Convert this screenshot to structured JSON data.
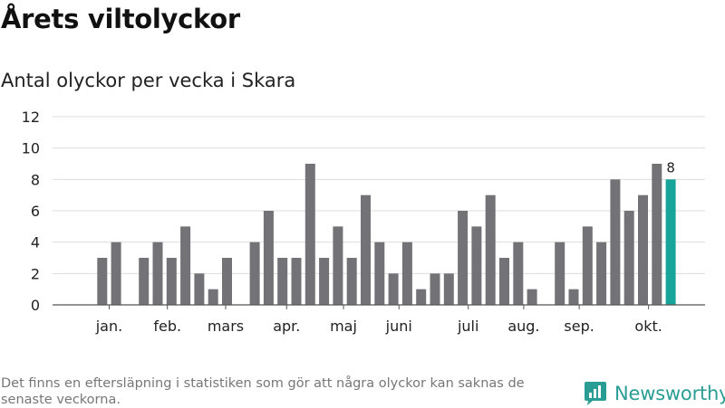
{
  "header": {
    "title": "Årets viltolyckor",
    "subtitle": "Antal olyckor per vecka i Skara"
  },
  "footer": {
    "note": "Det finns en eftersläpning i statistiken som gör att några olyckor kan saknas de senaste veckorna.",
    "brand": "Newsworthy"
  },
  "colors": {
    "bar": "#737277",
    "highlight": "#17a59b",
    "grid": "#dddddd",
    "axis": "#555555",
    "brand": "#2a9d95"
  },
  "chart_data": {
    "type": "bar",
    "title": "",
    "xlabel": "",
    "ylabel": "",
    "ylim": [
      0,
      12
    ],
    "yticks": [
      0,
      2,
      4,
      6,
      8,
      10,
      12
    ],
    "grid": true,
    "legend": "none",
    "week_start": 1,
    "values": [
      null,
      3,
      4,
      null,
      3,
      4,
      3,
      5,
      2,
      1,
      3,
      null,
      4,
      6,
      3,
      3,
      9,
      3,
      5,
      3,
      7,
      4,
      2,
      4,
      1,
      2,
      2,
      6,
      5,
      7,
      3,
      4,
      1,
      null,
      4,
      1,
      5,
      4,
      8,
      6,
      7,
      9,
      8
    ],
    "highlight_index": 42,
    "data_label": {
      "index": 42,
      "text": "8"
    },
    "month_labels": [
      {
        "label": "jan.",
        "week": 2.5
      },
      {
        "label": "feb.",
        "week": 6.7
      },
      {
        "label": "mars",
        "week": 10.9
      },
      {
        "label": "apr.",
        "week": 15.3
      },
      {
        "label": "maj",
        "week": 19.4
      },
      {
        "label": "juni",
        "week": 23.4
      },
      {
        "label": "juli",
        "week": 28.4
      },
      {
        "label": "aug.",
        "week": 32.4
      },
      {
        "label": "sep.",
        "week": 36.4
      },
      {
        "label": "okt.",
        "week": 41.4
      }
    ]
  }
}
